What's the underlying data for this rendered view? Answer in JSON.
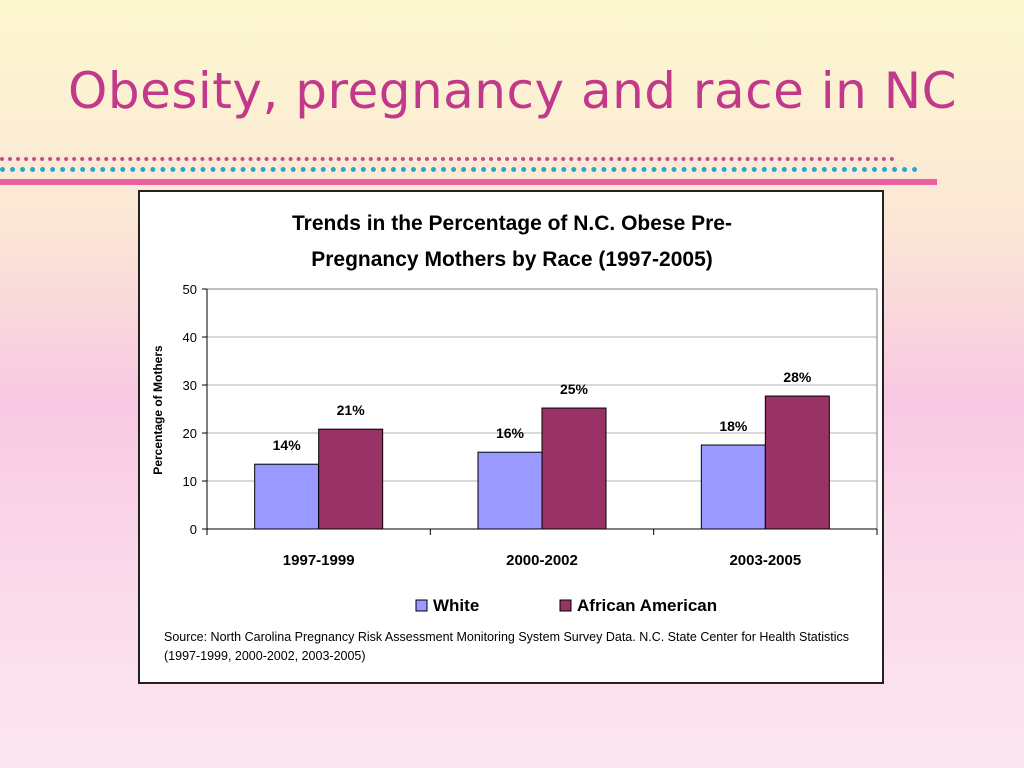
{
  "slide": {
    "title": "Obesity, pregnancy and race in NC"
  },
  "colors": {
    "title": "#c2388b",
    "white_series": "#9999ff",
    "african_american_series": "#993366"
  },
  "chart_data": {
    "type": "bar",
    "title_lines": [
      "Trends in the Percentage of N.C. Obese Pre-",
      "Pregnancy Mothers by Race (1997-2005)"
    ],
    "categories": [
      "1997-1999",
      "2000-2002",
      "2003-2005"
    ],
    "series": [
      {
        "name": "White",
        "values": [
          13.5,
          16,
          17.5
        ],
        "labels": [
          "14%",
          "16%",
          "18%"
        ],
        "color": "#9999ff"
      },
      {
        "name": "African American",
        "values": [
          20.8,
          25.2,
          27.7
        ],
        "labels": [
          "21%",
          "25%",
          "28%"
        ],
        "color": "#993366"
      }
    ],
    "xlabel": "",
    "ylabel": "Percentage of Mothers",
    "ylim": [
      0,
      50
    ],
    "yticks": [
      0,
      10,
      20,
      30,
      40,
      50
    ],
    "grid": true,
    "legend": "bottom"
  },
  "source_note": "Source: North Carolina Pregnancy Risk Assessment Monitoring System Survey Data.  N.C. State Center for Health Statistics (1997-1999, 2000-2002, 2003-2005)"
}
